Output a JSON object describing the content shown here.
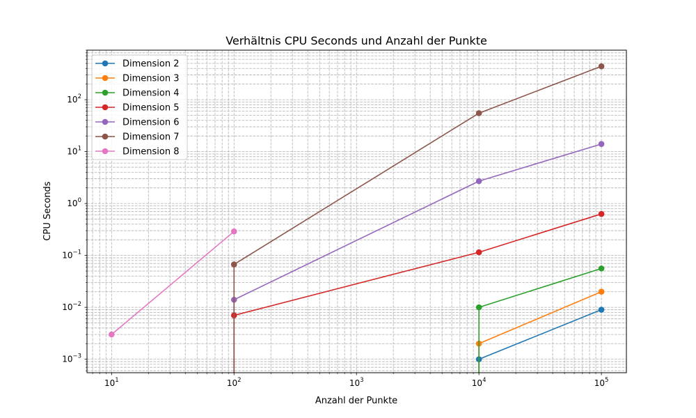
{
  "chart_data": {
    "type": "line",
    "title": "Verhältnis CPU Seconds und Anzahl der Punkte",
    "xlabel": "Anzahl der Punkte",
    "ylabel": "CPU Seconds",
    "xscale": "log",
    "yscale": "log",
    "xlim": [
      6.3,
      160000
    ],
    "ylim": [
      0.00055,
      900
    ],
    "grid": true,
    "grid_which": "both",
    "legend_placement": "upper-left",
    "x_ticks": [
      {
        "value": 10,
        "base": "10",
        "exp": "1"
      },
      {
        "value": 100,
        "base": "10",
        "exp": "2"
      },
      {
        "value": 1000,
        "base": "10",
        "exp": "3"
      },
      {
        "value": 10000,
        "base": "10",
        "exp": "4"
      },
      {
        "value": 100000,
        "base": "10",
        "exp": "5"
      }
    ],
    "y_ticks": [
      {
        "value": 0.001,
        "base": "10",
        "exp": "−3"
      },
      {
        "value": 0.01,
        "base": "10",
        "exp": "−2"
      },
      {
        "value": 0.1,
        "base": "10",
        "exp": "−1"
      },
      {
        "value": 1,
        "base": "10",
        "exp": "0"
      },
      {
        "value": 10,
        "base": "10",
        "exp": "1"
      },
      {
        "value": 100,
        "base": "10",
        "exp": "2"
      }
    ],
    "series": [
      {
        "name": "Dimension 2",
        "color": "#1f77b4",
        "x": [
          10000,
          10000,
          100000
        ],
        "y": [
          0.0001,
          0.001,
          0.009
        ]
      },
      {
        "name": "Dimension 3",
        "color": "#ff7f0e",
        "x": [
          10000,
          10000,
          100000
        ],
        "y": [
          0.0001,
          0.002,
          0.02
        ]
      },
      {
        "name": "Dimension 4",
        "color": "#2ca02c",
        "x": [
          10000,
          10000,
          100000
        ],
        "y": [
          0.0001,
          0.01,
          0.056
        ]
      },
      {
        "name": "Dimension 5",
        "color": "#d62728",
        "x": [
          100,
          100,
          10000,
          100000
        ],
        "y": [
          0.0001,
          0.007,
          0.115,
          0.63
        ]
      },
      {
        "name": "Dimension 6",
        "color": "#9467bd",
        "x": [
          100,
          100,
          10000,
          100000
        ],
        "y": [
          0.0001,
          0.014,
          2.7,
          14
        ]
      },
      {
        "name": "Dimension 7",
        "color": "#8c564b",
        "x": [
          100,
          100,
          10000,
          100000
        ],
        "y": [
          0.0001,
          0.067,
          55,
          440
        ]
      },
      {
        "name": "Dimension 8",
        "color": "#e377c2",
        "x": [
          10,
          100
        ],
        "y": [
          0.003,
          0.29
        ]
      }
    ]
  }
}
